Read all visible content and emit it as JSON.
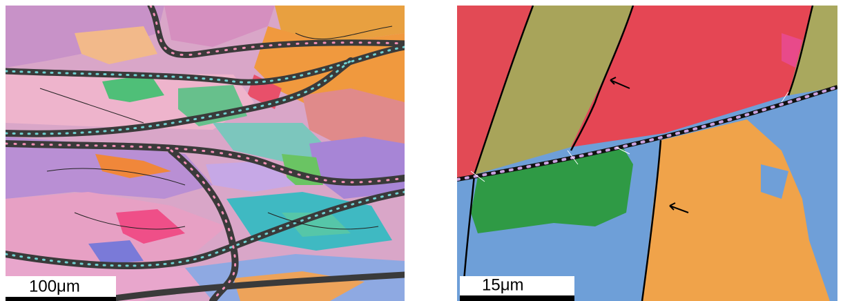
{
  "panels": [
    {
      "scale_bar": "100μm"
    },
    {
      "scale_bar": "15μm"
    }
  ]
}
